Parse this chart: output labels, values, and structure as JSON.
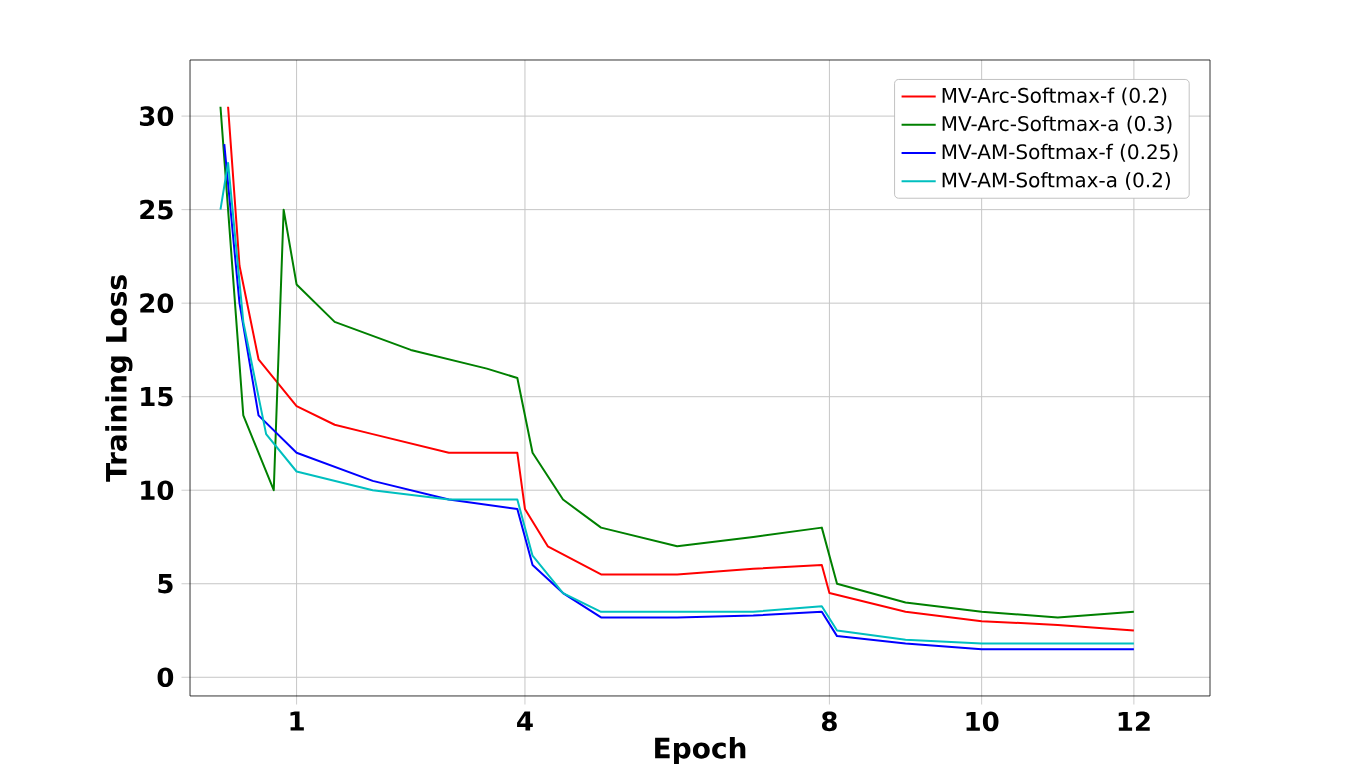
{
  "chart_data": {
    "type": "line",
    "xlabel": "Epoch",
    "ylabel": "Training Loss",
    "xlim": [
      -0.4,
      13
    ],
    "ylim": [
      -1,
      33
    ],
    "xticks": [
      1,
      4,
      8,
      10,
      12
    ],
    "yticks": [
      0,
      5,
      10,
      15,
      20,
      25,
      30
    ],
    "grid": true,
    "legend": "top right",
    "marker": "none",
    "line_style": "solid",
    "series": [
      {
        "name": "MV-Arc-Softmax-f (0.2)",
        "color": "#ff0000",
        "x": [
          0.1,
          0.25,
          0.5,
          1,
          1.5,
          2,
          3,
          3.9,
          4,
          4.3,
          5,
          6,
          7,
          7.9,
          8,
          9,
          10,
          11,
          12
        ],
        "values": [
          30.5,
          22,
          17,
          14.5,
          13.5,
          13,
          12,
          12,
          9,
          7,
          5.5,
          5.5,
          5.8,
          6,
          4.5,
          3.5,
          3,
          2.8,
          2.5
        ]
      },
      {
        "name": "MV-Arc-Softmax-a (0.3)",
        "color": "#008000",
        "x": [
          0,
          0.3,
          0.7,
          0.83,
          1,
          1.5,
          2.5,
          3.5,
          3.9,
          4.1,
          4.5,
          5,
          6,
          7,
          7.9,
          8.1,
          9,
          10,
          11,
          12
        ],
        "values": [
          30.5,
          14,
          10,
          25,
          21,
          19,
          17.5,
          16.5,
          16,
          12,
          9.5,
          8,
          7,
          7.5,
          8,
          5,
          4,
          3.5,
          3.2,
          3.5
        ]
      },
      {
        "name": "MV-AM-Softmax-f (0.25)",
        "color": "#0000ff",
        "x": [
          0.05,
          0.25,
          0.5,
          1,
          2,
          3,
          3.9,
          4.1,
          4.5,
          5,
          6,
          7,
          7.9,
          8.1,
          9,
          10,
          12
        ],
        "values": [
          28.5,
          20,
          14,
          12,
          10.5,
          9.5,
          9,
          6,
          4.5,
          3.2,
          3.2,
          3.3,
          3.5,
          2.2,
          1.8,
          1.5,
          1.5
        ]
      },
      {
        "name": "MV-AM-Softmax-a (0.2)",
        "color": "#00bfbf",
        "x": [
          0,
          0.1,
          0.3,
          0.6,
          1,
          2,
          3,
          3.9,
          4.1,
          4.5,
          5,
          7,
          7.9,
          8.1,
          9,
          10,
          12
        ],
        "values": [
          25,
          27.5,
          19,
          13,
          11,
          10,
          9.5,
          9.5,
          6.5,
          4.5,
          3.5,
          3.5,
          3.8,
          2.5,
          2,
          1.8,
          1.8
        ]
      }
    ]
  }
}
